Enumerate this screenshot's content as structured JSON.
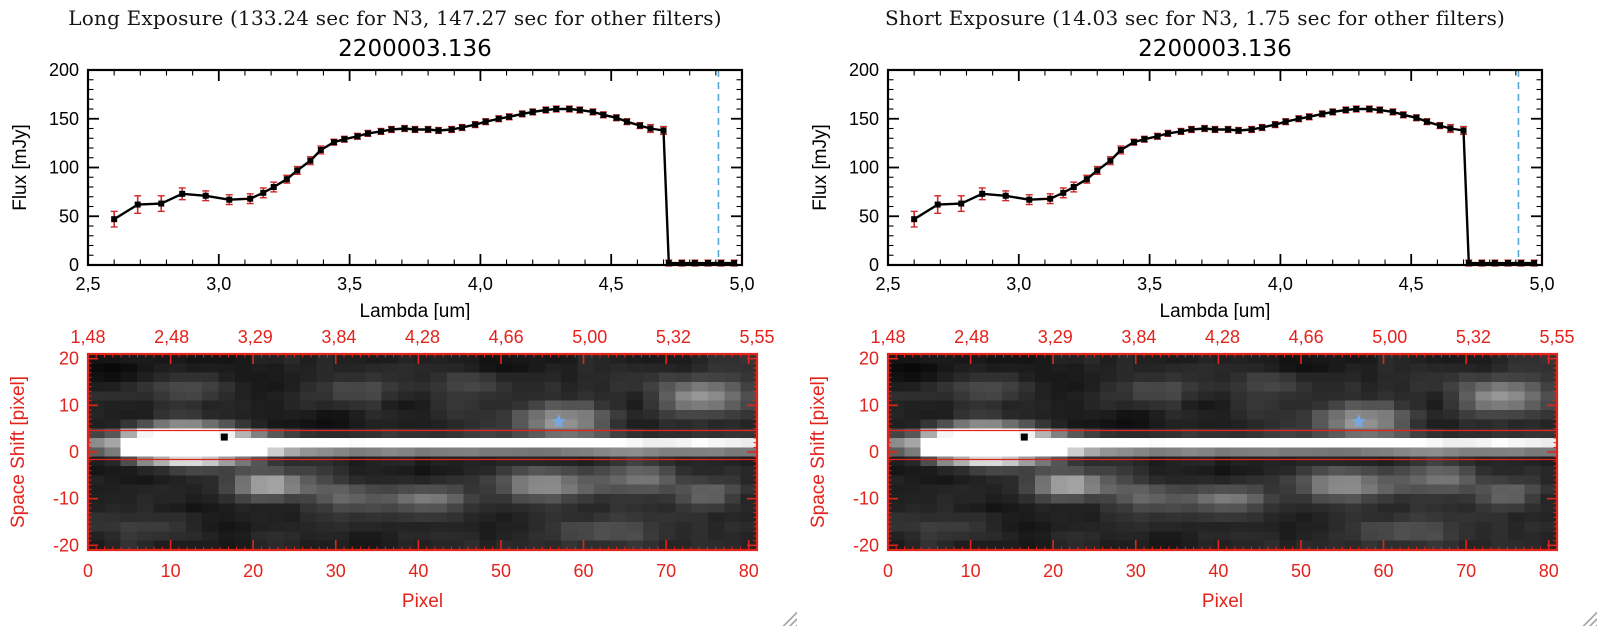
{
  "window": {
    "background": "#ffffff"
  },
  "panels": [
    {
      "title": "Long Exposure (133.24 sec for N3, 147.27 sec for other filters)",
      "object_id": "2200003.136"
    },
    {
      "title": "Short Exposure (14.03 sec for N3, 1.75 sec for other filters)",
      "object_id": "2200003.136"
    }
  ],
  "chart_data": [
    {
      "type": "line",
      "title": "2200003.136",
      "xlabel": "Lambda [um]",
      "ylabel": "Flux [mJy]",
      "xlim": [
        2.5,
        5.0
      ],
      "ylim": [
        0,
        200
      ],
      "x_tick_labels": [
        "2,5",
        "3,0",
        "3,5",
        "4,0",
        "4,5",
        "5,0"
      ],
      "x_tick_values": [
        2.5,
        3.0,
        3.5,
        4.0,
        4.5,
        5.0
      ],
      "x_minor_step": 0.1,
      "y_tick_labels": [
        "0",
        "50",
        "100",
        "150",
        "200"
      ],
      "y_tick_values": [
        0,
        50,
        100,
        150,
        200
      ],
      "y_minor_step": 10,
      "line_color": "#000000",
      "marker": "filled-square",
      "error_bar_color": "#cf2a2a",
      "reference_line": {
        "x": 4.91,
        "style": "dashed",
        "color": "#56a8d8"
      },
      "x": [
        2.6,
        2.69,
        2.78,
        2.86,
        2.95,
        3.04,
        3.12,
        3.17,
        3.21,
        3.26,
        3.3,
        3.35,
        3.39,
        3.44,
        3.48,
        3.53,
        3.57,
        3.62,
        3.66,
        3.71,
        3.75,
        3.8,
        3.84,
        3.89,
        3.93,
        3.98,
        4.02,
        4.07,
        4.11,
        4.16,
        4.2,
        4.25,
        4.29,
        4.34,
        4.38,
        4.43,
        4.47,
        4.52,
        4.56,
        4.61,
        4.65,
        4.7,
        4.72,
        4.77,
        4.82,
        4.87,
        4.92,
        4.97
      ],
      "y": [
        47,
        62,
        63,
        73,
        71,
        67,
        68,
        74,
        80,
        88,
        97,
        107,
        118,
        126,
        129,
        132,
        135,
        137,
        139,
        140,
        139,
        139,
        138,
        139,
        141,
        144,
        147,
        150,
        152,
        155,
        157,
        159,
        160,
        160,
        159,
        157,
        154,
        151,
        147,
        143,
        140,
        138,
        2,
        2,
        2,
        2,
        2,
        2
      ],
      "yerr": [
        8,
        9,
        8,
        6,
        5,
        5,
        5,
        5,
        5,
        4,
        4,
        4,
        4,
        3,
        3,
        3,
        3,
        3,
        3,
        3,
        3,
        3,
        3,
        3,
        3,
        3,
        3,
        3,
        3,
        3,
        3,
        3,
        3,
        3,
        3,
        3,
        3,
        3,
        3,
        3,
        4,
        4,
        3,
        3,
        3,
        3,
        3,
        3
      ],
      "shown_in_both_panels": true
    },
    {
      "type": "heatmap",
      "description": "Grayscale 2D spectral image with a bright horizontal source trace, red extraction-aperture lines, a blue star marker and a black square marker",
      "xlabel": "Pixel",
      "ylabel": "Space Shift [pixel]",
      "axis_color": "#e3231c",
      "xlim": [
        0,
        81
      ],
      "ylim": [
        -21,
        21
      ],
      "x_tick_labels": [
        "0",
        "10",
        "20",
        "30",
        "40",
        "50",
        "60",
        "70",
        "80"
      ],
      "x_tick_values": [
        0,
        10,
        20,
        30,
        40,
        50,
        60,
        70,
        80
      ],
      "y_tick_labels": [
        "-20",
        "-10",
        "0",
        "10",
        "20"
      ],
      "y_tick_values": [
        -20,
        -10,
        0,
        10,
        20
      ],
      "top_axis_labels": [
        "1,48",
        "2,48",
        "3,29",
        "3,84",
        "4,28",
        "4,66",
        "5,00",
        "5,32",
        "5,55"
      ],
      "aperture_lines_y": [
        4.6,
        -1.6
      ],
      "star_marker": {
        "x": 57,
        "y": 6.5,
        "color": "#74a9e8"
      },
      "square_marker": {
        "x": 16.5,
        "y": 3.2,
        "color": "#000000"
      },
      "shown_in_both_panels": true
    }
  ]
}
